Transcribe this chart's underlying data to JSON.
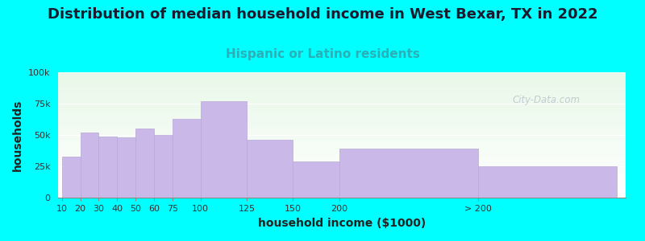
{
  "title": "Distribution of median household income in West Bexar, TX in 2022",
  "subtitle": "Hispanic or Latino residents",
  "xlabel": "household income ($1000)",
  "ylabel": "households",
  "background_outer": "#00FFFF",
  "bar_color": "#c9b8e8",
  "bar_edge_color": "#b8a8d8",
  "categories": [
    "10",
    "20",
    "30",
    "40",
    "50",
    "60",
    "75",
    "100",
    "125",
    "150",
    "200",
    "> 200"
  ],
  "values": [
    33000,
    52000,
    49000,
    48000,
    55000,
    50000,
    63000,
    77000,
    46000,
    29000,
    39000,
    25000
  ],
  "bar_lefts": [
    0,
    10,
    20,
    30,
    40,
    50,
    60,
    75,
    100,
    125,
    150,
    225
  ],
  "bar_widths": [
    10,
    10,
    10,
    10,
    10,
    10,
    15,
    25,
    25,
    25,
    75,
    75
  ],
  "ylim": [
    0,
    100000
  ],
  "yticks": [
    0,
    25000,
    50000,
    75000,
    100000
  ],
  "ytick_labels": [
    "0",
    "25k",
    "50k",
    "75k",
    "100k"
  ],
  "watermark": "City-Data.com",
  "title_fontsize": 13,
  "subtitle_fontsize": 11,
  "subtitle_color": "#2ab0b8",
  "axis_label_fontsize": 10,
  "tick_fontsize": 8
}
